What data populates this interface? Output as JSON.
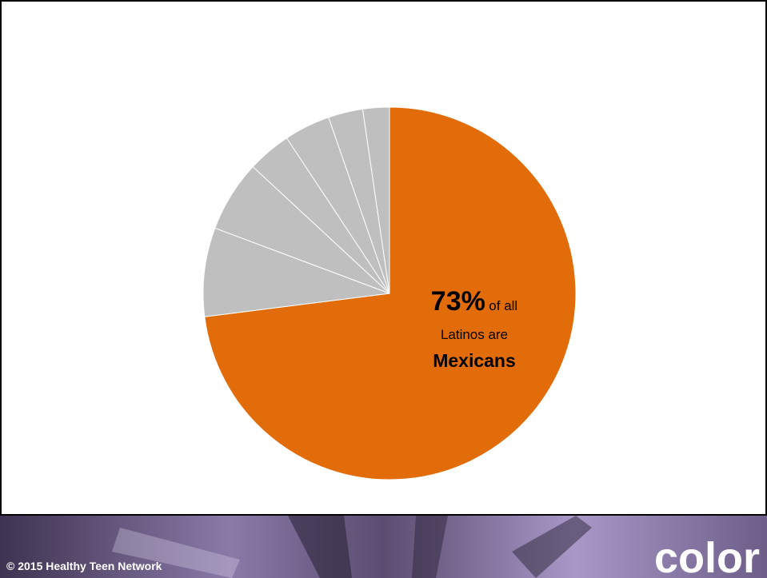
{
  "chart_data": {
    "type": "pie",
    "categories": [
      null,
      null,
      null,
      null,
      null,
      null,
      null
    ],
    "values": [
      73,
      7.7,
      6.2,
      3.8,
      4.0,
      3.0,
      2.3
    ],
    "value_labels": [
      "73%",
      null,
      null,
      null,
      null,
      null,
      null
    ],
    "colors": [
      "#E36C0A",
      "#BFBFBF",
      "#BFBFBF",
      "#BFBFBF",
      "#BFBFBF",
      "#BFBFBF",
      "#BFBFBF"
    ],
    "annotation": [
      "of all",
      "Latinos are",
      "Mexicans"
    ]
  },
  "footer": {
    "copyright": "© 2015 Healthy Teen Network",
    "label": "color"
  }
}
